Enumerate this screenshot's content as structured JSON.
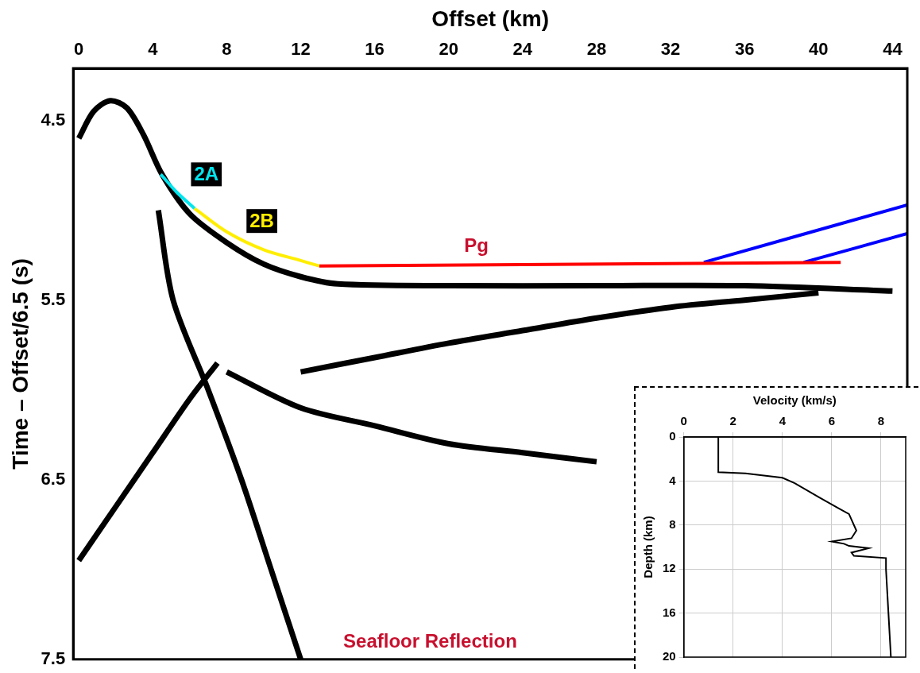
{
  "chart_data": [
    {
      "type": "line",
      "x_label": "Offset (km)",
      "y_label": "Time – Offset/6.5 (s)",
      "xlim": [
        -0.3,
        44.8
      ],
      "xticks": [
        0,
        4,
        8,
        12,
        16,
        20,
        24,
        28,
        32,
        36,
        40,
        44
      ],
      "ylim": [
        7.5,
        4.21
      ],
      "yticks": [
        4.5,
        5.5,
        6.5,
        7.5
      ],
      "grid": false,
      "series": [
        {
          "color": "#000000",
          "x": [
            0,
            0.8,
            1.7,
            2.6,
            3.5,
            4.5,
            6,
            8,
            10,
            12,
            14,
            20,
            28,
            36,
            44
          ],
          "values": [
            4.6,
            4.45,
            4.39,
            4.43,
            4.58,
            4.8,
            5.02,
            5.18,
            5.3,
            5.37,
            5.41,
            5.42,
            5.42,
            5.42,
            5.45
          ]
        },
        {
          "color": "#000000",
          "x": [
            12,
            16,
            20,
            24,
            28,
            32,
            36,
            40
          ],
          "values": [
            5.9,
            5.82,
            5.74,
            5.67,
            5.6,
            5.54,
            5.5,
            5.46
          ]
        },
        {
          "color": "#000000",
          "x": [
            8,
            12,
            16,
            20,
            24,
            28
          ],
          "values": [
            5.9,
            6.1,
            6.2,
            6.3,
            6.35,
            6.4
          ]
        },
        {
          "color": "#000000",
          "x": [
            0,
            2,
            4,
            6,
            7.5
          ],
          "values": [
            6.95,
            6.65,
            6.35,
            6.05,
            5.85
          ]
        },
        {
          "name": "Seafloor Reflection",
          "color": "#000000",
          "x": [
            4.3,
            5.1,
            7.0,
            8.8,
            10.4,
            12.0
          ],
          "values": [
            5.0,
            5.5,
            6.0,
            6.5,
            7.0,
            7.5
          ]
        },
        {
          "name": "2A",
          "color": "#00e5ee",
          "x": [
            4.43,
            5.3,
            6.26
          ],
          "values": [
            4.8,
            4.9,
            4.99
          ]
        },
        {
          "name": "2B",
          "color": "#ffee00",
          "x": [
            6.26,
            8,
            10,
            12,
            13.0
          ],
          "values": [
            4.99,
            5.12,
            5.22,
            5.28,
            5.31
          ]
        },
        {
          "name": "Pg",
          "color": "#ff0000",
          "x": [
            13.0,
            41.2
          ],
          "values": [
            5.31,
            5.29
          ]
        },
        {
          "color": "#0000ff",
          "x": [
            33.8,
            44.8
          ],
          "values": [
            5.29,
            4.97
          ]
        },
        {
          "color": "#0000ff",
          "x": [
            39.2,
            44.8
          ],
          "values": [
            5.29,
            5.13
          ]
        }
      ],
      "annotations": [
        {
          "text": "2A",
          "x": 6.9,
          "y": 4.8,
          "color": "#00e5ee"
        },
        {
          "text": "2B",
          "x": 9.9,
          "y": 5.06,
          "color": "#ffee00"
        },
        {
          "text": "Pg",
          "x": 21.5,
          "y": 5.2,
          "color": "#c8102e"
        },
        {
          "text": "Seafloor Reflection",
          "x": 19,
          "y": 7.4,
          "color": "#c8102e"
        }
      ]
    },
    {
      "type": "line",
      "x_label": "Velocity (km/s)",
      "y_label": "Depth (km)",
      "xlim": [
        0,
        9
      ],
      "xticks": [
        0,
        2,
        4,
        6,
        8
      ],
      "ylim": [
        20,
        0
      ],
      "yticks": [
        0,
        4,
        8,
        12,
        16,
        20
      ],
      "grid": true,
      "series": [
        {
          "color": "#000000",
          "x": [
            1.4,
            1.4,
            2.5,
            4.0,
            4.5,
            5.5,
            6.3,
            6.7,
            7.0,
            6.8,
            6.0,
            6.5,
            6.7,
            7.5,
            6.8,
            6.9,
            8.2,
            8.2,
            8.3,
            8.4
          ],
          "values": [
            0,
            3.2,
            3.3,
            3.7,
            4.2,
            5.5,
            6.5,
            7.0,
            8.5,
            9.2,
            9.5,
            9.7,
            9.9,
            10.1,
            10.5,
            10.8,
            11.0,
            12.0,
            16.0,
            20.0
          ]
        }
      ]
    }
  ]
}
